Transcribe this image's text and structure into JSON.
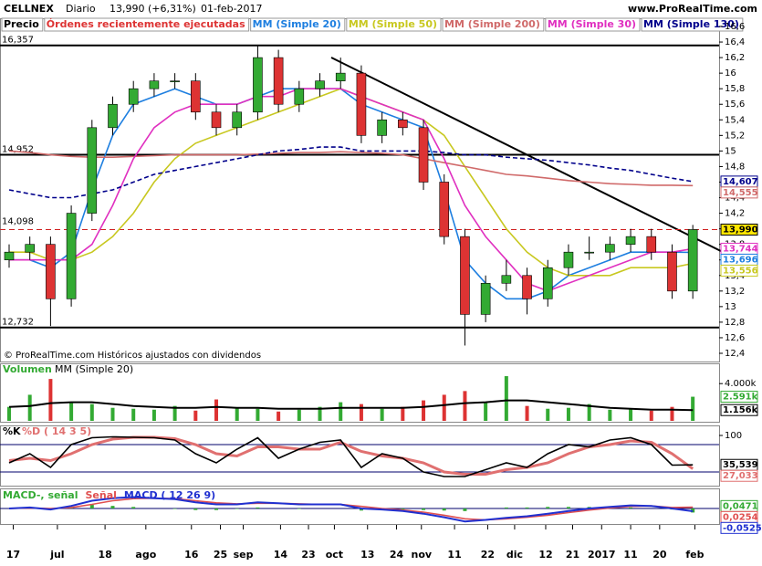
{
  "header": {
    "symbol": "CELLNEX",
    "period": "Diario",
    "price": "13,990 (+6,31%)",
    "date": "01-feb-2017",
    "site": "www.ProRealTime.com",
    "legend_extra": [
      "Precio",
      "Órdenes recientemente ejecutadas"
    ],
    "footer": "© ProRealTime.com Históricos ajustados con dividendos"
  },
  "chart_data": [
    {
      "type": "candlestick",
      "xlim": [
        -0.44,
        34.27
      ],
      "xticks": [
        {
          "value": 0.2,
          "label": "17"
        },
        {
          "value": 2.33,
          "label": "jul"
        },
        {
          "value": 4.63,
          "label": "18"
        },
        {
          "value": 6.6,
          "label": "ago"
        },
        {
          "value": 8.8,
          "label": "16"
        },
        {
          "value": 10.2,
          "label": "25"
        },
        {
          "value": 11.3,
          "label": "sep"
        },
        {
          "value": 13.1,
          "label": "14"
        },
        {
          "value": 14.45,
          "label": "23"
        },
        {
          "value": 15.7,
          "label": "oct"
        },
        {
          "value": 17.3,
          "label": "13"
        },
        {
          "value": 18.7,
          "label": "24"
        },
        {
          "value": 19.9,
          "label": "nov"
        },
        {
          "value": 21.5,
          "label": "11"
        },
        {
          "value": 23.1,
          "label": "22"
        },
        {
          "value": 24.4,
          "label": "dic"
        },
        {
          "value": 25.9,
          "label": "12"
        },
        {
          "value": 27.2,
          "label": "21"
        },
        {
          "value": 28.6,
          "label": "2017"
        },
        {
          "value": 30,
          "label": "11"
        },
        {
          "value": 31.4,
          "label": "20"
        },
        {
          "value": 33.1,
          "label": "feb"
        }
      ],
      "ylim": [
        12.4,
        16.6
      ],
      "yticks": [
        {
          "value": 16.6,
          "label": "16,6"
        },
        {
          "value": 16.4,
          "label": "16,4"
        },
        {
          "value": 16.2,
          "label": "16,2"
        },
        16,
        {
          "value": 15.8,
          "label": "15,8"
        },
        {
          "value": 15.6,
          "label": "15,6"
        },
        {
          "value": 15.4,
          "label": "15,4"
        },
        {
          "value": 15.2,
          "label": "15,2"
        },
        15,
        {
          "value": 14.8,
          "label": "14,8"
        },
        {
          "value": 14.6,
          "label": "14,6"
        },
        {
          "value": 14.4,
          "label": "14,4"
        },
        {
          "value": 14.2,
          "label": "14,2"
        },
        14,
        {
          "value": 13.8,
          "label": "13,8"
        },
        {
          "value": 13.6,
          "label": "13,6"
        },
        {
          "value": 13.4,
          "label": "13,4"
        },
        {
          "value": 13.2,
          "label": "13,2"
        },
        13,
        {
          "value": 12.8,
          "label": "12,8"
        },
        {
          "value": 12.6,
          "label": "12,6"
        },
        {
          "value": 12.4,
          "label": "12,4"
        }
      ],
      "open": [
        13.6,
        13.7,
        13.8,
        13.1,
        14.2,
        15.3,
        15.6,
        15.8,
        15.9,
        15.9,
        15.5,
        15.3,
        15.5,
        16.2,
        15.6,
        15.8,
        15.9,
        16.0,
        15.2,
        15.4,
        15.3,
        14.6,
        13.9,
        12.9,
        13.3,
        13.4,
        13.1,
        13.5,
        13.7,
        13.7,
        13.8,
        13.9,
        13.7,
        13.2
      ],
      "high": [
        13.8,
        13.9,
        13.9,
        14.3,
        15.4,
        15.7,
        15.9,
        16.0,
        16.0,
        16.0,
        15.6,
        15.6,
        16.35,
        16.3,
        15.9,
        16.0,
        16.2,
        16.1,
        15.5,
        15.5,
        15.4,
        14.7,
        14.0,
        13.4,
        13.6,
        13.5,
        13.6,
        13.8,
        13.9,
        13.9,
        14.0,
        14.0,
        13.8,
        14.05
      ],
      "low": [
        13.5,
        13.6,
        12.75,
        13.0,
        14.1,
        15.2,
        15.5,
        15.7,
        15.8,
        15.4,
        15.2,
        15.2,
        15.4,
        15.5,
        15.5,
        15.7,
        15.8,
        15.1,
        15.1,
        15.2,
        14.5,
        13.8,
        12.5,
        12.8,
        13.2,
        12.9,
        13.0,
        13.4,
        13.6,
        13.6,
        13.7,
        13.6,
        13.1,
        13.1
      ],
      "close": [
        13.7,
        13.8,
        13.1,
        14.2,
        15.3,
        15.6,
        15.8,
        15.9,
        15.9,
        15.5,
        15.3,
        15.5,
        16.2,
        15.6,
        15.8,
        15.9,
        16.0,
        15.2,
        15.4,
        15.3,
        14.6,
        13.9,
        12.9,
        13.3,
        13.4,
        13.1,
        13.5,
        13.7,
        13.7,
        13.8,
        13.9,
        13.7,
        13.2,
        13.99
      ],
      "series": [
        {
          "name": "MM (Simple 20)",
          "color": "#1e7fe0",
          "values": [
            13.6,
            13.6,
            13.5,
            13.7,
            14.5,
            15.2,
            15.6,
            15.7,
            15.8,
            15.7,
            15.6,
            15.6,
            15.7,
            15.8,
            15.8,
            15.8,
            15.8,
            15.6,
            15.5,
            15.4,
            15.3,
            14.5,
            13.6,
            13.3,
            13.1,
            13.1,
            13.2,
            13.4,
            13.5,
            13.6,
            13.7,
            13.7,
            13.7,
            13.696
          ]
        },
        {
          "name": "MM (Simple 50)",
          "color": "#c8c820",
          "values": [
            13.7,
            13.7,
            13.6,
            13.6,
            13.7,
            13.9,
            14.2,
            14.6,
            14.9,
            15.1,
            15.2,
            15.3,
            15.4,
            15.5,
            15.6,
            15.7,
            15.8,
            15.7,
            15.6,
            15.5,
            15.4,
            15.2,
            14.8,
            14.4,
            14.0,
            13.7,
            13.5,
            13.4,
            13.4,
            13.4,
            13.5,
            13.5,
            13.5,
            13.556
          ]
        },
        {
          "name": "MM (Simple 200)",
          "color": "#d06a6a",
          "values": [
            15.0,
            14.98,
            14.95,
            14.93,
            14.92,
            14.92,
            14.93,
            14.94,
            14.95,
            14.95,
            14.95,
            14.95,
            14.96,
            14.97,
            14.98,
            14.98,
            14.99,
            14.98,
            14.97,
            14.95,
            14.9,
            14.85,
            14.8,
            14.75,
            14.7,
            14.68,
            14.65,
            14.62,
            14.6,
            14.58,
            14.57,
            14.56,
            14.56,
            14.555
          ]
        },
        {
          "name": "MM (Simple 30)",
          "color": "#e030c0",
          "values": [
            13.6,
            13.6,
            13.6,
            13.6,
            13.8,
            14.3,
            14.9,
            15.3,
            15.5,
            15.6,
            15.6,
            15.6,
            15.7,
            15.7,
            15.8,
            15.8,
            15.8,
            15.7,
            15.6,
            15.5,
            15.4,
            14.9,
            14.3,
            13.9,
            13.6,
            13.3,
            13.2,
            13.3,
            13.4,
            13.5,
            13.6,
            13.7,
            13.7,
            13.744
          ]
        },
        {
          "name": "MM (Simple 130)",
          "color": "#00008b",
          "dash": true,
          "values": [
            14.5,
            14.45,
            14.4,
            14.4,
            14.45,
            14.5,
            14.6,
            14.7,
            14.75,
            14.8,
            14.85,
            14.9,
            14.95,
            15.0,
            15.02,
            15.05,
            15.05,
            15.0,
            15.0,
            15.0,
            15.0,
            14.98,
            14.95,
            14.95,
            14.92,
            14.9,
            14.88,
            14.85,
            14.82,
            14.78,
            14.75,
            14.7,
            14.65,
            14.607
          ]
        }
      ],
      "levels": [
        {
          "value": 16.357,
          "label": "16,357"
        },
        {
          "value": 14.952,
          "label": "14,952"
        },
        {
          "value": 12.732,
          "label": "12,732"
        }
      ],
      "left_labels": [
        {
          "value": 14.098,
          "label": "14,098"
        }
      ],
      "right_labels": [
        {
          "value": 14.607,
          "label": "14,607",
          "color": "#00008b"
        },
        {
          "value": 14.555,
          "label": "14,555",
          "color": "#d06a6a"
        },
        {
          "value": 13.99,
          "label": "13,990",
          "color": "#000000"
        },
        {
          "value": 13.744,
          "label": "13,744",
          "color": "#e030c0"
        },
        {
          "value": 13.696,
          "label": "13,696",
          "color": "#1e7fe0"
        },
        {
          "value": 13.556,
          "label": "13,556",
          "color": "#c8c820"
        }
      ]
    },
    {
      "type": "bar",
      "title": "Volumen",
      "ylim": [
        0,
        5
      ],
      "yticks": [
        {
          "value": 4,
          "label": "4.000k"
        }
      ],
      "values": [
        1.5,
        2.8,
        4.5,
        2.0,
        1.8,
        1.4,
        1.3,
        1.2,
        1.6,
        1.1,
        2.3,
        1.4,
        1.3,
        1.0,
        1.2,
        1.5,
        2.0,
        1.8,
        1.3,
        1.5,
        2.2,
        2.8,
        3.2,
        2.0,
        4.8,
        1.6,
        1.3,
        1.4,
        1.8,
        1.2,
        1.3,
        1.1,
        1.5,
        2.591
      ],
      "series": [
        {
          "name": "MM (Simple 20)",
          "color": "#000000",
          "values": [
            1.5,
            1.6,
            1.9,
            2.0,
            2.0,
            1.8,
            1.6,
            1.5,
            1.4,
            1.4,
            1.5,
            1.4,
            1.4,
            1.3,
            1.3,
            1.3,
            1.4,
            1.4,
            1.4,
            1.4,
            1.5,
            1.7,
            1.9,
            2.0,
            2.2,
            2.2,
            2.0,
            1.8,
            1.6,
            1.4,
            1.3,
            1.2,
            1.2,
            1.156
          ]
        }
      ],
      "right_labels": [
        {
          "value": 2.591,
          "label": "2.591k",
          "color": "#33aa33"
        },
        {
          "value": 1.156,
          "label": "1.156k",
          "color": "#000000"
        }
      ]
    },
    {
      "type": "line",
      "ylim": [
        -5,
        105
      ],
      "yticks": [
        100
      ],
      "levels": [
        80,
        20
      ],
      "series": [
        {
          "name": "%K",
          "color": "#000000",
          "values": [
            40,
            60,
            30,
            80,
            95,
            97,
            96,
            95,
            90,
            60,
            40,
            70,
            95,
            50,
            70,
            85,
            90,
            30,
            60,
            50,
            20,
            10,
            10,
            25,
            40,
            30,
            60,
            80,
            75,
            90,
            95,
            80,
            35,
            35.539
          ]
        },
        {
          "name": "%D ( 14 3 5)",
          "color": "#e07070",
          "values": [
            45,
            50,
            45,
            60,
            80,
            92,
            96,
            96,
            93,
            80,
            60,
            55,
            75,
            75,
            70,
            70,
            85,
            65,
            55,
            50,
            40,
            20,
            15,
            15,
            25,
            30,
            40,
            60,
            75,
            80,
            88,
            85,
            60,
            27.033
          ]
        }
      ],
      "right_labels": [
        {
          "value": 35.539,
          "label": "35,539",
          "color": "#000000"
        },
        {
          "value": 27.033,
          "label": "27,033",
          "color": "#e07070"
        }
      ]
    },
    {
      "type": "macd",
      "ylim": [
        -0.3,
        0.3
      ],
      "series": [
        {
          "name": "MACD-, señal",
          "color": "#33aa33",
          "values": null
        },
        {
          "name": "Señal",
          "color": "#e05050",
          "values": [
            0.0,
            0.01,
            0.0,
            0.02,
            0.08,
            0.15,
            0.19,
            0.2,
            0.19,
            0.15,
            0.11,
            0.09,
            0.1,
            0.1,
            0.09,
            0.08,
            0.08,
            0.04,
            0.0,
            -0.03,
            -0.07,
            -0.13,
            -0.2,
            -0.22,
            -0.2,
            -0.17,
            -0.13,
            -0.08,
            -0.03,
            0.01,
            0.04,
            0.05,
            0.02,
            0.0254
          ]
        },
        {
          "name": "MACD ( 12 26 9)",
          "color": "#2030d0",
          "values": [
            0.0,
            0.02,
            -0.02,
            0.05,
            0.15,
            0.2,
            0.22,
            0.2,
            0.18,
            0.12,
            0.08,
            0.08,
            0.12,
            0.1,
            0.08,
            0.08,
            0.08,
            0.0,
            -0.02,
            -0.05,
            -0.1,
            -0.17,
            -0.25,
            -0.22,
            -0.18,
            -0.15,
            -0.1,
            -0.05,
            0.0,
            0.03,
            0.06,
            0.05,
            0.0,
            -0.0525
          ]
        }
      ],
      "right_labels": [
        {
          "value": 0.0471,
          "label": "0,0471",
          "color": "#33aa33"
        },
        {
          "value": 0.0254,
          "label": "0,0254",
          "color": "#e05050"
        },
        {
          "value": -0.0525,
          "label": "-0,0525",
          "color": "#2030d0"
        }
      ]
    }
  ]
}
